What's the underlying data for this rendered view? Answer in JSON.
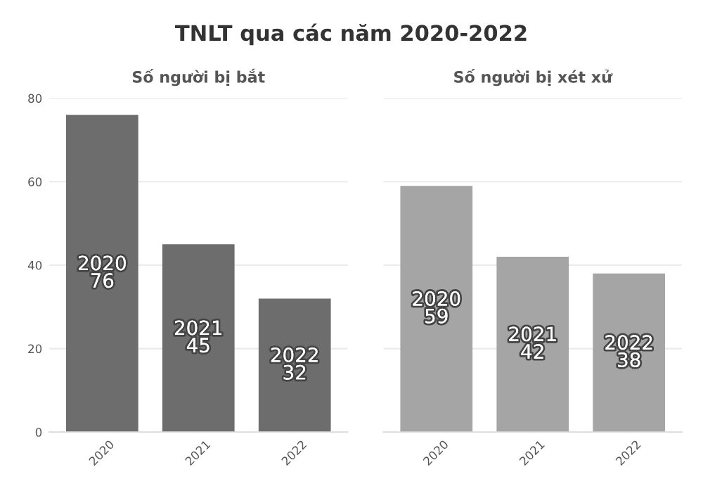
{
  "chart_data": [
    {
      "type": "bar",
      "title": "Số người bị bắt",
      "annotations": [
        "TNLT qua các năm 2020-2022"
      ],
      "categories": [
        "2020",
        "2021",
        "2022"
      ],
      "values": [
        76,
        45,
        32
      ],
      "value_labels": [
        "2020\n76",
        "2021\n45",
        "2022\n32"
      ],
      "color": "#6d6d6d",
      "ylim": [
        0,
        80
      ],
      "yticks": [
        0,
        20,
        40,
        60,
        80
      ],
      "grid": "y"
    },
    {
      "type": "bar",
      "title": "Số người bị xét xử",
      "categories": [
        "2020",
        "2021",
        "2022"
      ],
      "values": [
        59,
        42,
        38
      ],
      "value_labels": [
        "2020\n59",
        "2021\n42",
        "2022\n38"
      ],
      "color": "#a5a5a5",
      "ylim": [
        0,
        80
      ],
      "yticks": [
        0,
        20,
        40,
        60,
        80
      ],
      "grid": "y",
      "tick_labels": "x"
    }
  ]
}
